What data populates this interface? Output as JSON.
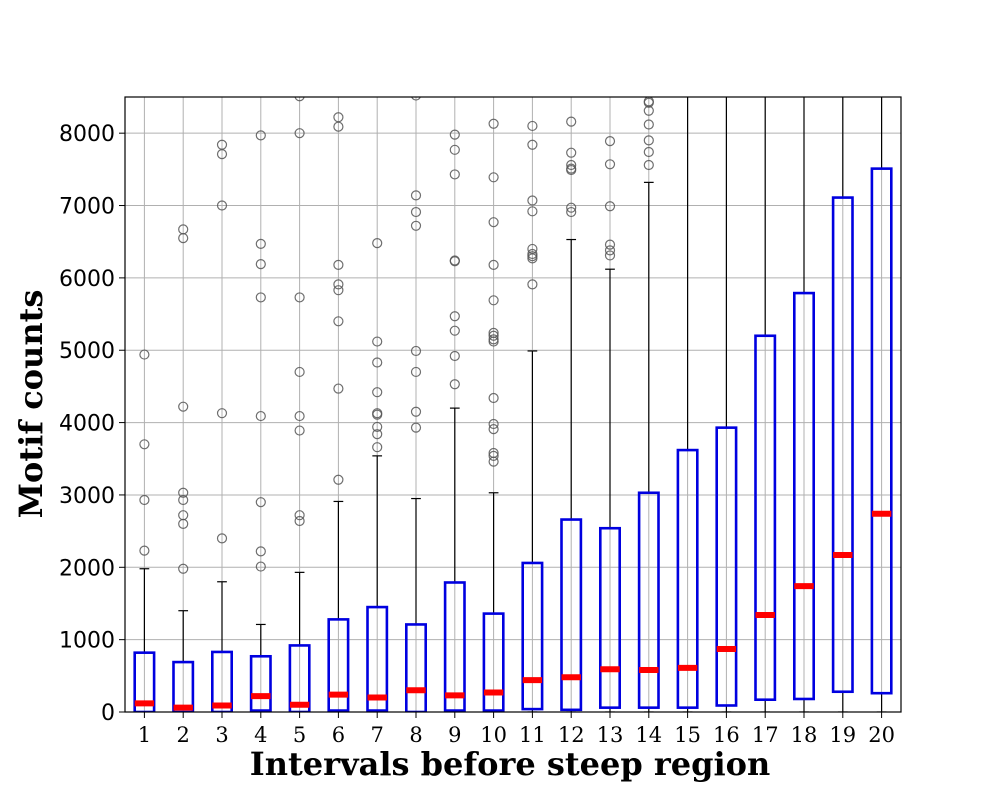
{
  "chart_data": {
    "type": "boxplot",
    "xlabel": "Intervals before steep region",
    "ylabel": "Motif counts",
    "categories": [
      "1",
      "2",
      "3",
      "4",
      "5",
      "6",
      "7",
      "8",
      "9",
      "10",
      "11",
      "12",
      "13",
      "14",
      "15",
      "16",
      "17",
      "18",
      "19",
      "20"
    ],
    "ylim": [
      0,
      8500
    ],
    "yticks": [
      0,
      1000,
      2000,
      3000,
      4000,
      5000,
      6000,
      7000,
      8000
    ],
    "grid": true,
    "colors": {
      "box": "#0000e0",
      "median": "#ff0000",
      "whisker": "#000000",
      "flier": "#555555",
      "grid": "#b0b0b0"
    },
    "boxes": [
      {
        "q1": 0,
        "median": 120,
        "q3": 820,
        "whisker_low": 0,
        "whisker_high": 1980,
        "fliers": [
          2230,
          2930,
          3700,
          4940
        ]
      },
      {
        "q1": 0,
        "median": 60,
        "q3": 690,
        "whisker_low": 0,
        "whisker_high": 1400,
        "fliers": [
          1980,
          2600,
          2720,
          2930,
          3030,
          4220,
          6550,
          6670
        ]
      },
      {
        "q1": 0,
        "median": 90,
        "q3": 830,
        "whisker_low": 0,
        "whisker_high": 1800,
        "fliers": [
          2400,
          4130,
          7000,
          7710,
          7840
        ]
      },
      {
        "q1": 20,
        "median": 220,
        "q3": 770,
        "whisker_low": 0,
        "whisker_high": 1210,
        "fliers": [
          2010,
          2220,
          2900,
          4090,
          5730,
          6190,
          6470,
          7970
        ]
      },
      {
        "q1": 0,
        "median": 100,
        "q3": 920,
        "whisker_low": 0,
        "whisker_high": 1930,
        "fliers": [
          2640,
          2720,
          3890,
          4090,
          4700,
          5730,
          8000,
          8510
        ]
      },
      {
        "q1": 20,
        "median": 240,
        "q3": 1280,
        "whisker_low": 0,
        "whisker_high": 2910,
        "fliers": [
          3210,
          4470,
          5400,
          5830,
          5910,
          6180,
          8090,
          8220
        ]
      },
      {
        "q1": 20,
        "median": 200,
        "q3": 1450,
        "whisker_low": 0,
        "whisker_high": 3540,
        "fliers": [
          3660,
          3840,
          3940,
          4110,
          4130,
          4420,
          4830,
          5120,
          6480
        ]
      },
      {
        "q1": 0,
        "median": 300,
        "q3": 1210,
        "whisker_low": 0,
        "whisker_high": 2950,
        "fliers": [
          3930,
          4150,
          4700,
          4990,
          6720,
          6910,
          7140,
          8520
        ]
      },
      {
        "q1": 20,
        "median": 230,
        "q3": 1790,
        "whisker_low": 0,
        "whisker_high": 4200,
        "fliers": [
          4530,
          4920,
          5270,
          5470,
          6230,
          6240,
          7430,
          7770,
          7980
        ]
      },
      {
        "q1": 20,
        "median": 270,
        "q3": 1360,
        "whisker_low": 0,
        "whisker_high": 3030,
        "fliers": [
          3460,
          3540,
          3580,
          3910,
          3980,
          4340,
          5120,
          5150,
          5200,
          5240,
          5690,
          6180,
          6770,
          7390,
          8130
        ]
      },
      {
        "q1": 40,
        "median": 440,
        "q3": 2060,
        "whisker_low": 0,
        "whisker_high": 4990,
        "fliers": [
          5910,
          6270,
          6300,
          6330,
          6400,
          6920,
          7070,
          7840,
          8100
        ]
      },
      {
        "q1": 30,
        "median": 480,
        "q3": 2660,
        "whisker_low": 0,
        "whisker_high": 6530,
        "fliers": [
          6910,
          6970,
          7490,
          7510,
          7560,
          7730,
          8160
        ]
      },
      {
        "q1": 60,
        "median": 590,
        "q3": 2540,
        "whisker_low": 0,
        "whisker_high": 6120,
        "fliers": [
          6310,
          6380,
          6460,
          6990,
          7570,
          7890
        ]
      },
      {
        "q1": 60,
        "median": 580,
        "q3": 3030,
        "whisker_low": 0,
        "whisker_high": 7320,
        "fliers": [
          7560,
          7740,
          7900,
          8120,
          8310,
          8420,
          8440
        ]
      },
      {
        "q1": 60,
        "median": 610,
        "q3": 3620,
        "whisker_low": 0,
        "whisker_high": 8600,
        "fliers": []
      },
      {
        "q1": 90,
        "median": 870,
        "q3": 3930,
        "whisker_low": 0,
        "whisker_high": 8600,
        "fliers": []
      },
      {
        "q1": 170,
        "median": 1340,
        "q3": 5200,
        "whisker_low": 0,
        "whisker_high": 8600,
        "fliers": []
      },
      {
        "q1": 180,
        "median": 1740,
        "q3": 5790,
        "whisker_low": 0,
        "whisker_high": 8600,
        "fliers": []
      },
      {
        "q1": 280,
        "median": 2170,
        "q3": 7110,
        "whisker_low": 0,
        "whisker_high": 8600,
        "fliers": []
      },
      {
        "q1": 260,
        "median": 2740,
        "q3": 7510,
        "whisker_low": 0,
        "whisker_high": 8600,
        "fliers": []
      }
    ]
  }
}
